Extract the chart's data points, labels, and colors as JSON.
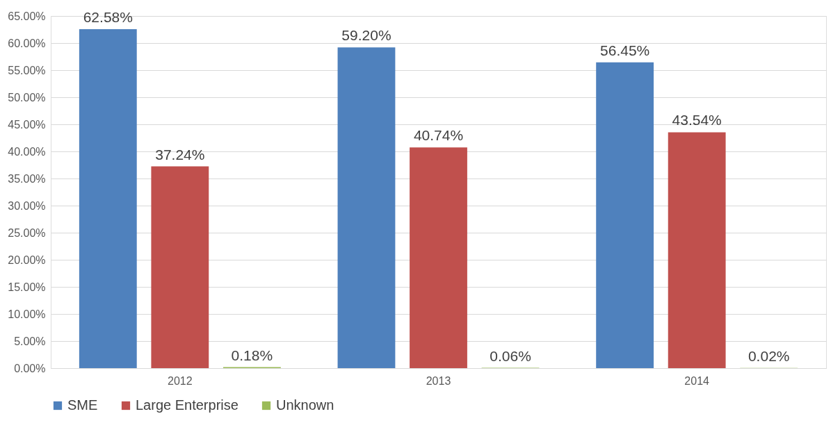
{
  "chart_data": {
    "type": "bar",
    "categories": [
      "2012",
      "2013",
      "2014"
    ],
    "series": [
      {
        "name": "SME",
        "color": "#4f81bd",
        "values": [
          62.58,
          59.2,
          56.45
        ],
        "value_labels": [
          "62.58%",
          "59.20%",
          "56.45%"
        ]
      },
      {
        "name": "Large Enterprise",
        "color": "#c0504d",
        "values": [
          37.24,
          40.74,
          43.54
        ],
        "value_labels": [
          "37.24%",
          "40.74%",
          "43.54%"
        ]
      },
      {
        "name": "Unknown",
        "color": "#9bbb59",
        "values": [
          0.18,
          0.06,
          0.02
        ],
        "value_labels": [
          "0.18%",
          "0.06%",
          "0.02%"
        ]
      }
    ],
    "ylim": [
      0,
      65
    ],
    "yticks": [
      {
        "value": 0,
        "label": "0.00%"
      },
      {
        "value": 5,
        "label": "5.00%"
      },
      {
        "value": 10,
        "label": "10.00%"
      },
      {
        "value": 15,
        "label": "15.00%"
      },
      {
        "value": 20,
        "label": "20.00%"
      },
      {
        "value": 25,
        "label": "25.00%"
      },
      {
        "value": 30,
        "label": "30.00%"
      },
      {
        "value": 35,
        "label": "35.00%"
      },
      {
        "value": 40,
        "label": "40.00%"
      },
      {
        "value": 45,
        "label": "45.00%"
      },
      {
        "value": 50,
        "label": "50.00%"
      },
      {
        "value": 55,
        "label": "55.00%"
      },
      {
        "value": 60,
        "label": "60.00%"
      },
      {
        "value": 65,
        "label": "65.00%"
      }
    ],
    "grid": "y",
    "legend": "bottom"
  }
}
